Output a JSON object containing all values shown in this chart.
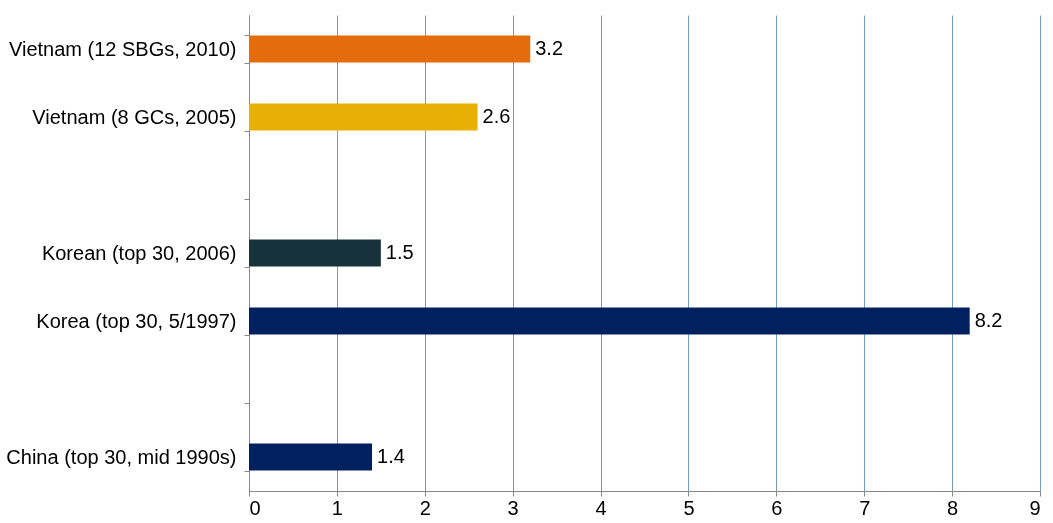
{
  "chart_data": {
    "type": "bar",
    "orientation": "horizontal",
    "categories": [
      "Vietnam (12 SBGs, 2010)",
      "Vietnam (8 GCs, 2005)",
      null,
      "Korean (top 30, 2006)",
      "Korea (top 30, 5/1997)",
      null,
      "China (top 30, mid 1990s)"
    ],
    "values": [
      3.2,
      2.6,
      null,
      1.5,
      8.2,
      null,
      1.4
    ],
    "colors": [
      "#e46c0a",
      "#e8b004",
      null,
      "#17323a",
      "#002060",
      null,
      "#002060"
    ],
    "xlim": [
      0,
      9
    ],
    "xticks": [
      0,
      1,
      2,
      3,
      4,
      5,
      6,
      7,
      8,
      9
    ],
    "grid": "x",
    "data_labels": true
  }
}
